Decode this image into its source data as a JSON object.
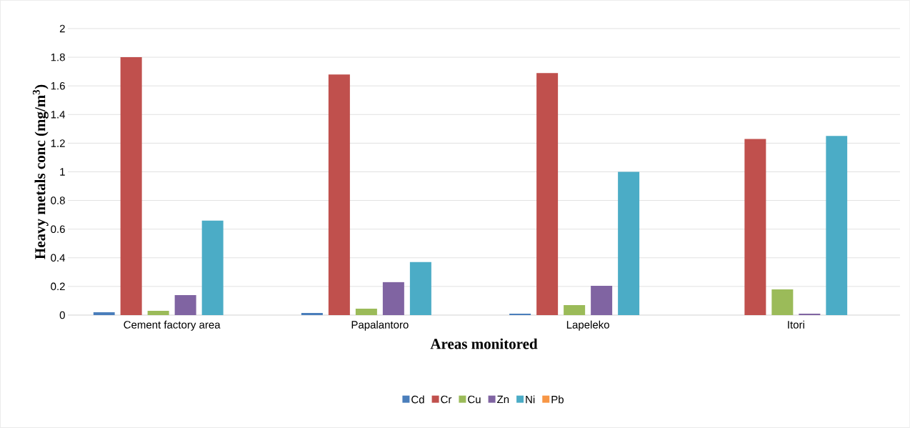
{
  "chart_data": {
    "type": "bar",
    "xlabel": "Areas monitored",
    "ylabel": "Heavy metals conc (mg/m$^{3}$)",
    "categories": [
      "Cement factory area",
      "Papalantoro",
      "Lapeleko",
      "Itori"
    ],
    "series": [
      {
        "name": "Cd",
        "color": "#4a7ebb",
        "values": [
          0.02,
          0.015,
          0.01,
          0
        ]
      },
      {
        "name": "Cr",
        "color": "#c0504d",
        "values": [
          1.8,
          1.68,
          1.69,
          1.23
        ]
      },
      {
        "name": "Cu",
        "color": "#9bbb59",
        "values": [
          0.03,
          0.045,
          0.07,
          0.18
        ]
      },
      {
        "name": "Zn",
        "color": "#8064a2",
        "values": [
          0.14,
          0.23,
          0.205,
          0.01
        ]
      },
      {
        "name": "Ni",
        "color": "#4bacc6",
        "values": [
          0.66,
          0.37,
          1.0,
          1.25
        ]
      },
      {
        "name": "Pb",
        "color": "#f79646",
        "values": [
          0,
          0,
          0,
          0
        ]
      }
    ],
    "ylim": [
      0,
      2
    ],
    "yticks": [
      0,
      0.2,
      0.4,
      0.6,
      0.8,
      1,
      1.2,
      1.4,
      1.6,
      1.8,
      2
    ],
    "grid": "y",
    "legend": "bottom"
  }
}
